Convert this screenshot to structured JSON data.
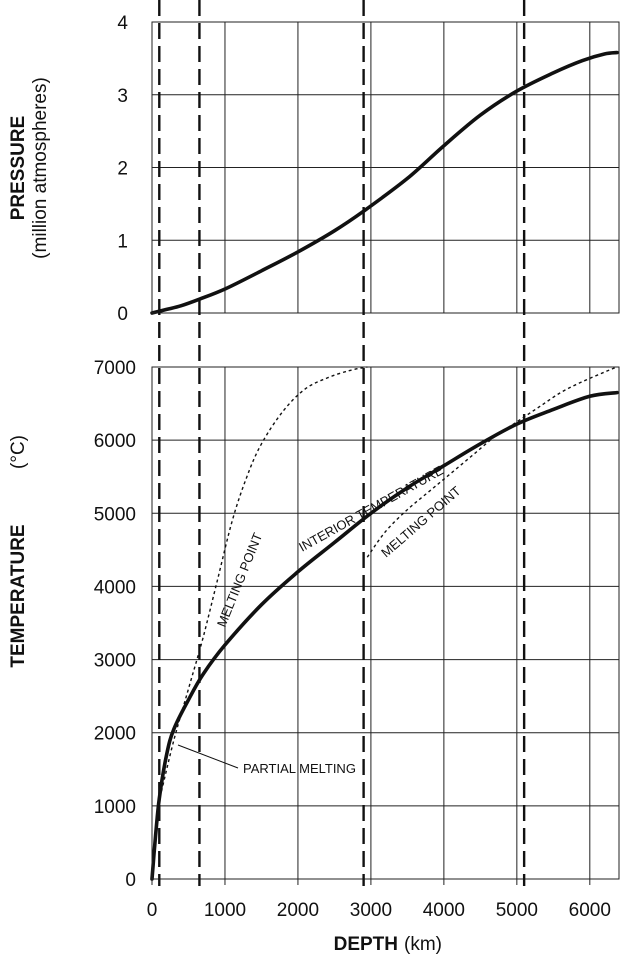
{
  "chart_data": [
    {
      "type": "line",
      "ylabel_bold": "PRESSURE",
      "ylabel_sub": "(million atmospheres)",
      "xlim": [
        0,
        6400
      ],
      "ylim": [
        0,
        4
      ],
      "yticks": [
        "0",
        "1",
        "2",
        "3",
        "4"
      ],
      "series": [
        {
          "x": [
            0,
            200,
            400,
            650,
            1000,
            1500,
            2000,
            2500,
            2900,
            3500,
            4000,
            4500,
            5000,
            5500,
            5900,
            6200,
            6371
          ],
          "values": [
            0.0,
            0.05,
            0.1,
            0.19,
            0.33,
            0.58,
            0.84,
            1.13,
            1.4,
            1.85,
            2.3,
            2.72,
            3.05,
            3.3,
            3.47,
            3.56,
            3.58
          ]
        }
      ]
    },
    {
      "type": "line",
      "ylabel_bold": "TEMPERATURE",
      "ylabel_unit": "(°C)",
      "xlabel_bold": "DEPTH",
      "xlabel_unit": "(km)",
      "xlim": [
        0,
        6400
      ],
      "ylim": [
        0,
        7000
      ],
      "xticks": [
        "0",
        "1000",
        "2000",
        "3000",
        "4000",
        "5000",
        "6000"
      ],
      "yticks": [
        "0",
        "1000",
        "2000",
        "3000",
        "4000",
        "5000",
        "6000",
        "7000"
      ],
      "boundaries_km": [
        100,
        650,
        2900,
        5100
      ],
      "series": [
        {
          "name": "INTERIOR TEMPERATURE",
          "x": [
            0,
            50,
            100,
            200,
            300,
            500,
            700,
            1000,
            1500,
            2000,
            2500,
            3000,
            3500,
            4000,
            4500,
            5000,
            5500,
            6000,
            6371
          ],
          "values": [
            0,
            600,
            1100,
            1700,
            2050,
            2450,
            2800,
            3200,
            3750,
            4200,
            4600,
            5000,
            5350,
            5650,
            5950,
            6220,
            6420,
            6600,
            6650
          ]
        },
        {
          "name": "MELTING POINT",
          "x": [
            130,
            300,
            500,
            700,
            900,
            1100,
            1300,
            1500,
            1800,
            2100,
            2400,
            2700,
            2950
          ],
          "values": [
            1200,
            1900,
            2600,
            3300,
            4100,
            4900,
            5500,
            5950,
            6400,
            6700,
            6850,
            6950,
            7000
          ]
        },
        {
          "name": "MELTING POINT",
          "x": [
            2950,
            3200,
            3500,
            3800,
            4100,
            4400,
            4700,
            5000,
            5300,
            5600,
            5900,
            6200,
            6371
          ],
          "values": [
            4400,
            4750,
            5050,
            5300,
            5550,
            5800,
            6050,
            6250,
            6450,
            6650,
            6800,
            6930,
            7000
          ]
        }
      ],
      "annotations": [
        {
          "text": "INTERIOR TEMPERATURE"
        },
        {
          "text": "MELTING POINT"
        },
        {
          "text": "MELTING POINT"
        },
        {
          "text": "PARTIAL MELTING"
        }
      ]
    }
  ]
}
